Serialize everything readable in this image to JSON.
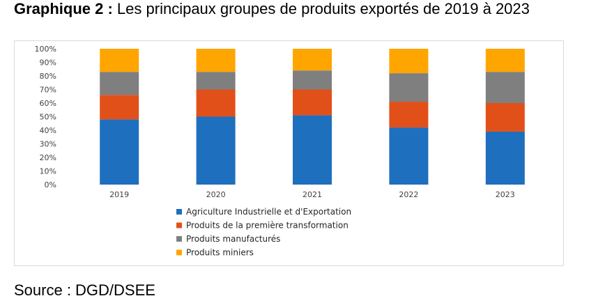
{
  "title": {
    "prefix": "Graphique 2 :",
    "text": "Les principaux groupes de produits exportés de 2019 à 2023"
  },
  "source": "Source : DGD/DSEE",
  "chart_data": {
    "type": "bar",
    "stacked": true,
    "categories": [
      "2019",
      "2020",
      "2021",
      "2022",
      "2023"
    ],
    "series": [
      {
        "name": "Agriculture Industrielle et d'Exportation",
        "color": "#1f6fbf",
        "values": [
          48,
          50,
          51,
          42,
          39
        ]
      },
      {
        "name": "Produits de la première transformation",
        "color": "#e2501a",
        "values": [
          18,
          20,
          19,
          19,
          21
        ]
      },
      {
        "name": "Produits manufacturés",
        "color": "#7f7f7f",
        "values": [
          17,
          13,
          14,
          21,
          23
        ]
      },
      {
        "name": "Produits miniers",
        "color": "#ffa500",
        "values": [
          17,
          17,
          16,
          18,
          17
        ]
      }
    ],
    "yticks": [
      "0%",
      "10%",
      "20%",
      "30%",
      "40%",
      "50%",
      "60%",
      "70%",
      "80%",
      "90%",
      "100%"
    ],
    "ylim": [
      0,
      100
    ],
    "grid": false,
    "legend_position": "bottom"
  }
}
